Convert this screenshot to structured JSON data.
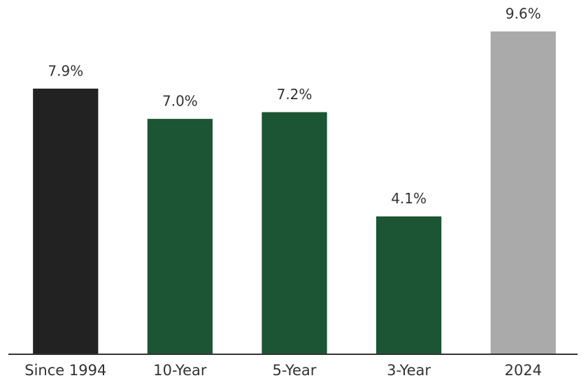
{
  "chart_data": {
    "type": "bar",
    "categories": [
      "Since 1994",
      "10-Year",
      "5-Year",
      "3-Year",
      "2024"
    ],
    "values": [
      7.9,
      7.0,
      7.2,
      4.1,
      9.6
    ],
    "value_labels": [
      "7.9%",
      "7.0%",
      "7.2%",
      "4.1%",
      "9.6%"
    ],
    "colors": [
      "#222222",
      "#1b5533",
      "#1b5533",
      "#1b5533",
      "#aaaaaa"
    ]
  }
}
